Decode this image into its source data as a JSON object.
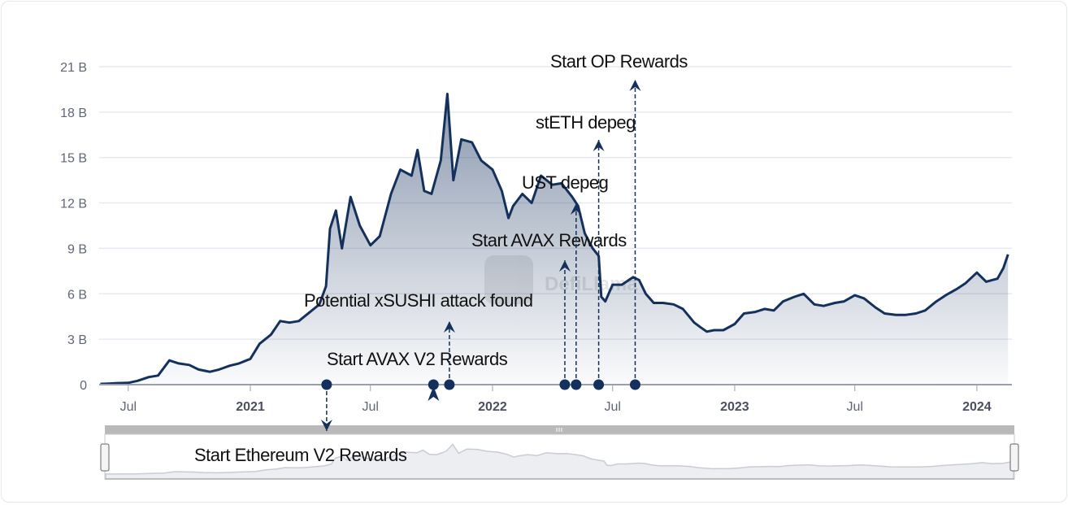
{
  "chart_data": {
    "type": "area",
    "title": "",
    "xlabel": "",
    "ylabel": "",
    "ylim": [
      0,
      21000000000
    ],
    "y_ticks": [
      "0",
      "3 B",
      "6 B",
      "9 B",
      "12 B",
      "15 B",
      "18 B",
      "21 B"
    ],
    "x_ticks": [
      {
        "date": "2020-07-01",
        "label": "Jul",
        "major": false
      },
      {
        "date": "2021-01-01",
        "label": "2021",
        "major": true
      },
      {
        "date": "2021-07-01",
        "label": "Jul",
        "major": false
      },
      {
        "date": "2022-01-01",
        "label": "2022",
        "major": true
      },
      {
        "date": "2022-07-01",
        "label": "Jul",
        "major": false
      },
      {
        "date": "2023-01-01",
        "label": "2023",
        "major": true
      },
      {
        "date": "2023-07-01",
        "label": "Jul",
        "major": false
      },
      {
        "date": "2024-01-01",
        "label": "2024",
        "major": true
      }
    ],
    "grid": true,
    "line_color": "#14305c",
    "fill_color": "#14305c",
    "unit": "B (USD)",
    "series": [
      {
        "points": [
          [
            "2020-05-20",
            0.05
          ],
          [
            "2020-06-01",
            0.07
          ],
          [
            "2020-06-15",
            0.1
          ],
          [
            "2020-07-01",
            0.12
          ],
          [
            "2020-07-15",
            0.25
          ],
          [
            "2020-08-01",
            0.5
          ],
          [
            "2020-08-15",
            0.6
          ],
          [
            "2020-09-01",
            1.6
          ],
          [
            "2020-09-15",
            1.4
          ],
          [
            "2020-10-01",
            1.3
          ],
          [
            "2020-10-15",
            1.0
          ],
          [
            "2020-11-01",
            0.85
          ],
          [
            "2020-11-15",
            1.0
          ],
          [
            "2020-12-01",
            1.25
          ],
          [
            "2020-12-15",
            1.4
          ],
          [
            "2021-01-01",
            1.7
          ],
          [
            "2021-01-15",
            2.7
          ],
          [
            "2021-02-01",
            3.3
          ],
          [
            "2021-02-15",
            4.2
          ],
          [
            "2021-03-01",
            4.1
          ],
          [
            "2021-03-15",
            4.2
          ],
          [
            "2021-04-01",
            4.8
          ],
          [
            "2021-04-15",
            5.3
          ],
          [
            "2021-04-25",
            6.5
          ],
          [
            "2021-05-01",
            10.3
          ],
          [
            "2021-05-10",
            11.5
          ],
          [
            "2021-05-19",
            9.0
          ],
          [
            "2021-06-01",
            12.4
          ],
          [
            "2021-06-15",
            10.5
          ],
          [
            "2021-07-01",
            9.2
          ],
          [
            "2021-07-15",
            9.8
          ],
          [
            "2021-08-01",
            12.6
          ],
          [
            "2021-08-15",
            14.2
          ],
          [
            "2021-09-01",
            13.8
          ],
          [
            "2021-09-10",
            15.5
          ],
          [
            "2021-09-20",
            12.8
          ],
          [
            "2021-10-01",
            12.6
          ],
          [
            "2021-10-15",
            14.8
          ],
          [
            "2021-10-25",
            19.2
          ],
          [
            "2021-11-03",
            13.5
          ],
          [
            "2021-11-15",
            16.2
          ],
          [
            "2021-12-01",
            16.0
          ],
          [
            "2021-12-15",
            14.8
          ],
          [
            "2022-01-01",
            14.2
          ],
          [
            "2022-01-15",
            12.8
          ],
          [
            "2022-01-25",
            11.0
          ],
          [
            "2022-02-01",
            11.8
          ],
          [
            "2022-02-15",
            12.6
          ],
          [
            "2022-03-01",
            12.0
          ],
          [
            "2022-03-15",
            13.8
          ],
          [
            "2022-04-01",
            13.2
          ],
          [
            "2022-04-15",
            13.3
          ],
          [
            "2022-05-01",
            12.4
          ],
          [
            "2022-05-10",
            11.8
          ],
          [
            "2022-05-20",
            10.0
          ],
          [
            "2022-06-01",
            9.0
          ],
          [
            "2022-06-10",
            8.5
          ],
          [
            "2022-06-14",
            5.8
          ],
          [
            "2022-06-20",
            5.5
          ],
          [
            "2022-07-01",
            6.6
          ],
          [
            "2022-07-15",
            6.6
          ],
          [
            "2022-08-01",
            7.1
          ],
          [
            "2022-08-10",
            6.9
          ],
          [
            "2022-08-20",
            6.0
          ],
          [
            "2022-09-01",
            5.4
          ],
          [
            "2022-09-15",
            5.4
          ],
          [
            "2022-10-01",
            5.3
          ],
          [
            "2022-10-15",
            5.0
          ],
          [
            "2022-11-01",
            4.1
          ],
          [
            "2022-11-10",
            3.8
          ],
          [
            "2022-11-20",
            3.5
          ],
          [
            "2022-12-01",
            3.6
          ],
          [
            "2022-12-15",
            3.6
          ],
          [
            "2023-01-01",
            4.0
          ],
          [
            "2023-01-15",
            4.7
          ],
          [
            "2023-02-01",
            4.8
          ],
          [
            "2023-02-15",
            5.0
          ],
          [
            "2023-03-01",
            4.9
          ],
          [
            "2023-03-15",
            5.5
          ],
          [
            "2023-04-01",
            5.8
          ],
          [
            "2023-04-15",
            6.0
          ],
          [
            "2023-05-01",
            5.3
          ],
          [
            "2023-05-15",
            5.2
          ],
          [
            "2023-06-01",
            5.4
          ],
          [
            "2023-06-15",
            5.5
          ],
          [
            "2023-07-01",
            5.9
          ],
          [
            "2023-07-15",
            5.7
          ],
          [
            "2023-08-01",
            5.1
          ],
          [
            "2023-08-15",
            4.7
          ],
          [
            "2023-09-01",
            4.6
          ],
          [
            "2023-09-15",
            4.6
          ],
          [
            "2023-10-01",
            4.7
          ],
          [
            "2023-10-15",
            4.9
          ],
          [
            "2023-11-01",
            5.5
          ],
          [
            "2023-11-15",
            5.9
          ],
          [
            "2023-12-01",
            6.3
          ],
          [
            "2023-12-15",
            6.7
          ],
          [
            "2024-01-01",
            7.4
          ],
          [
            "2024-01-15",
            6.8
          ],
          [
            "2024-02-01",
            7.0
          ],
          [
            "2024-02-10",
            7.7
          ],
          [
            "2024-02-17",
            8.6
          ]
        ]
      }
    ],
    "annotations": [
      {
        "date": "2021-04-26",
        "label": "Start Ethereum V2 Rewards"
      },
      {
        "date": "2021-10-04",
        "label": "Start AVAX V2 Rewards"
      },
      {
        "date": "2021-10-28",
        "label": "Potential xSUSHI attack found"
      },
      {
        "date": "2022-04-20",
        "label": "Start AVAX Rewards"
      },
      {
        "date": "2022-05-07",
        "label": "UST depeg"
      },
      {
        "date": "2022-06-10",
        "label": "stETH depeg"
      },
      {
        "date": "2022-08-04",
        "label": "Start OP Rewards"
      }
    ],
    "navigator": {
      "range": [
        "2020-05-20",
        "2024-02-17"
      ],
      "color": "#c9ccd3"
    },
    "watermark": "DefiLlama"
  }
}
